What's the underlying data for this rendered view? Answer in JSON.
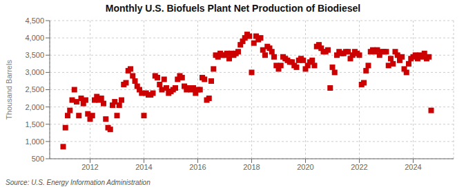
{
  "chart_data": {
    "type": "scatter",
    "title": "Monthly U.S. Biofuels Plant Net Production of Biodiesel",
    "y_label": "Thousand Barrels",
    "source": "Source: U.S. Energy Information Administration",
    "color": "#cc0000",
    "marker": "square",
    "grid": true,
    "xlim": [
      2010.5,
      2025.5
    ],
    "xticks": [
      2012,
      2014,
      2016,
      2018,
      2020,
      2022,
      2024
    ],
    "ylim": [
      500,
      4500
    ],
    "yticks": [
      500,
      {
        "value": 1000,
        "label": "1,000"
      },
      {
        "value": 1500,
        "label": "1,500"
      },
      {
        "value": 2000,
        "label": "2,000"
      },
      {
        "value": 2500,
        "label": "2,500"
      },
      {
        "value": 3000,
        "label": "3,000"
      },
      {
        "value": 3500,
        "label": "3,500"
      },
      {
        "value": 4000,
        "label": "4,000"
      },
      {
        "value": 4500,
        "label": "4,500"
      }
    ],
    "x": [
      2011.0,
      2011.083,
      2011.167,
      2011.25,
      2011.333,
      2011.417,
      2011.5,
      2011.583,
      2011.667,
      2011.75,
      2011.833,
      2011.917,
      2012.0,
      2012.083,
      2012.167,
      2012.25,
      2012.333,
      2012.417,
      2012.5,
      2012.583,
      2012.667,
      2012.75,
      2012.833,
      2012.917,
      2013.0,
      2013.083,
      2013.167,
      2013.25,
      2013.333,
      2013.417,
      2013.5,
      2013.583,
      2013.667,
      2013.75,
      2013.833,
      2013.917,
      2014.0,
      2014.083,
      2014.167,
      2014.25,
      2014.333,
      2014.417,
      2014.5,
      2014.583,
      2014.667,
      2014.75,
      2014.833,
      2014.917,
      2015.0,
      2015.083,
      2015.167,
      2015.25,
      2015.333,
      2015.417,
      2015.5,
      2015.583,
      2015.667,
      2015.75,
      2015.833,
      2015.917,
      2016.0,
      2016.083,
      2016.167,
      2016.25,
      2016.333,
      2016.417,
      2016.5,
      2016.583,
      2016.667,
      2016.75,
      2016.833,
      2016.917,
      2017.0,
      2017.083,
      2017.167,
      2017.25,
      2017.333,
      2017.417,
      2017.5,
      2017.583,
      2017.667,
      2017.75,
      2017.833,
      2017.917,
      2018.0,
      2018.083,
      2018.167,
      2018.25,
      2018.333,
      2018.417,
      2018.5,
      2018.583,
      2018.667,
      2018.75,
      2018.833,
      2018.917,
      2019.0,
      2019.083,
      2019.167,
      2019.25,
      2019.333,
      2019.417,
      2019.5,
      2019.583,
      2019.667,
      2019.75,
      2019.833,
      2019.917,
      2020.0,
      2020.083,
      2020.167,
      2020.25,
      2020.333,
      2020.417,
      2020.5,
      2020.583,
      2020.667,
      2020.75,
      2020.833,
      2020.917,
      2021.0,
      2021.083,
      2021.167,
      2021.25,
      2021.333,
      2021.417,
      2021.5,
      2021.583,
      2021.667,
      2021.75,
      2021.833,
      2021.917,
      2022.0,
      2022.083,
      2022.167,
      2022.25,
      2022.333,
      2022.417,
      2022.5,
      2022.583,
      2022.667,
      2022.75,
      2022.833,
      2022.917,
      2023.0,
      2023.083,
      2023.167,
      2023.25,
      2023.333,
      2023.417,
      2023.5,
      2023.583,
      2023.667,
      2023.75,
      2023.833,
      2023.917,
      2024.0,
      2024.083,
      2024.167,
      2024.25,
      2024.333,
      2024.417,
      2024.5,
      2024.583,
      2024.667
    ],
    "values": [
      850,
      1400,
      1750,
      1900,
      2200,
      2500,
      2150,
      1750,
      2250,
      2100,
      2200,
      1800,
      1650,
      1750,
      2200,
      2300,
      2200,
      2250,
      2100,
      1650,
      1400,
      1350,
      2050,
      2150,
      1750,
      2050,
      2200,
      2650,
      2700,
      3050,
      3100,
      2900,
      2750,
      2600,
      2500,
      2400,
      1750,
      2400,
      2350,
      2350,
      2400,
      2900,
      2850,
      2650,
      2500,
      2800,
      2550,
      2400,
      2450,
      2500,
      2550,
      2800,
      2900,
      2850,
      2600,
      2500,
      2550,
      2500,
      2550,
      2400,
      2500,
      2500,
      2850,
      2800,
      2200,
      2250,
      2750,
      3100,
      3500,
      3450,
      3550,
      3500,
      3500,
      3550,
      3400,
      3550,
      3500,
      3550,
      3600,
      3800,
      3900,
      4000,
      4100,
      4050,
      3000,
      3850,
      4050,
      3950,
      4000,
      3650,
      3500,
      3750,
      3700,
      3600,
      3450,
      3200,
      3100,
      3200,
      3450,
      3400,
      3350,
      3300,
      3300,
      3200,
      3150,
      3350,
      3400,
      3350,
      3100,
      3200,
      3300,
      3350,
      3200,
      3750,
      3800,
      3700,
      3600,
      3600,
      3650,
      2550,
      3150,
      3000,
      3500,
      3600,
      3550,
      3550,
      3600,
      3600,
      3400,
      3500,
      3600,
      3550,
      3500,
      2650,
      2700,
      3050,
      3200,
      3600,
      3650,
      3600,
      3650,
      3500,
      3600,
      3600,
      3600,
      3200,
      3400,
      3250,
      3600,
      3500,
      3350,
      3450,
      3100,
      3000,
      3250,
      3400,
      3450,
      3500,
      3400,
      3500,
      3450,
      3550,
      3400,
      3450,
      1900
    ]
  }
}
